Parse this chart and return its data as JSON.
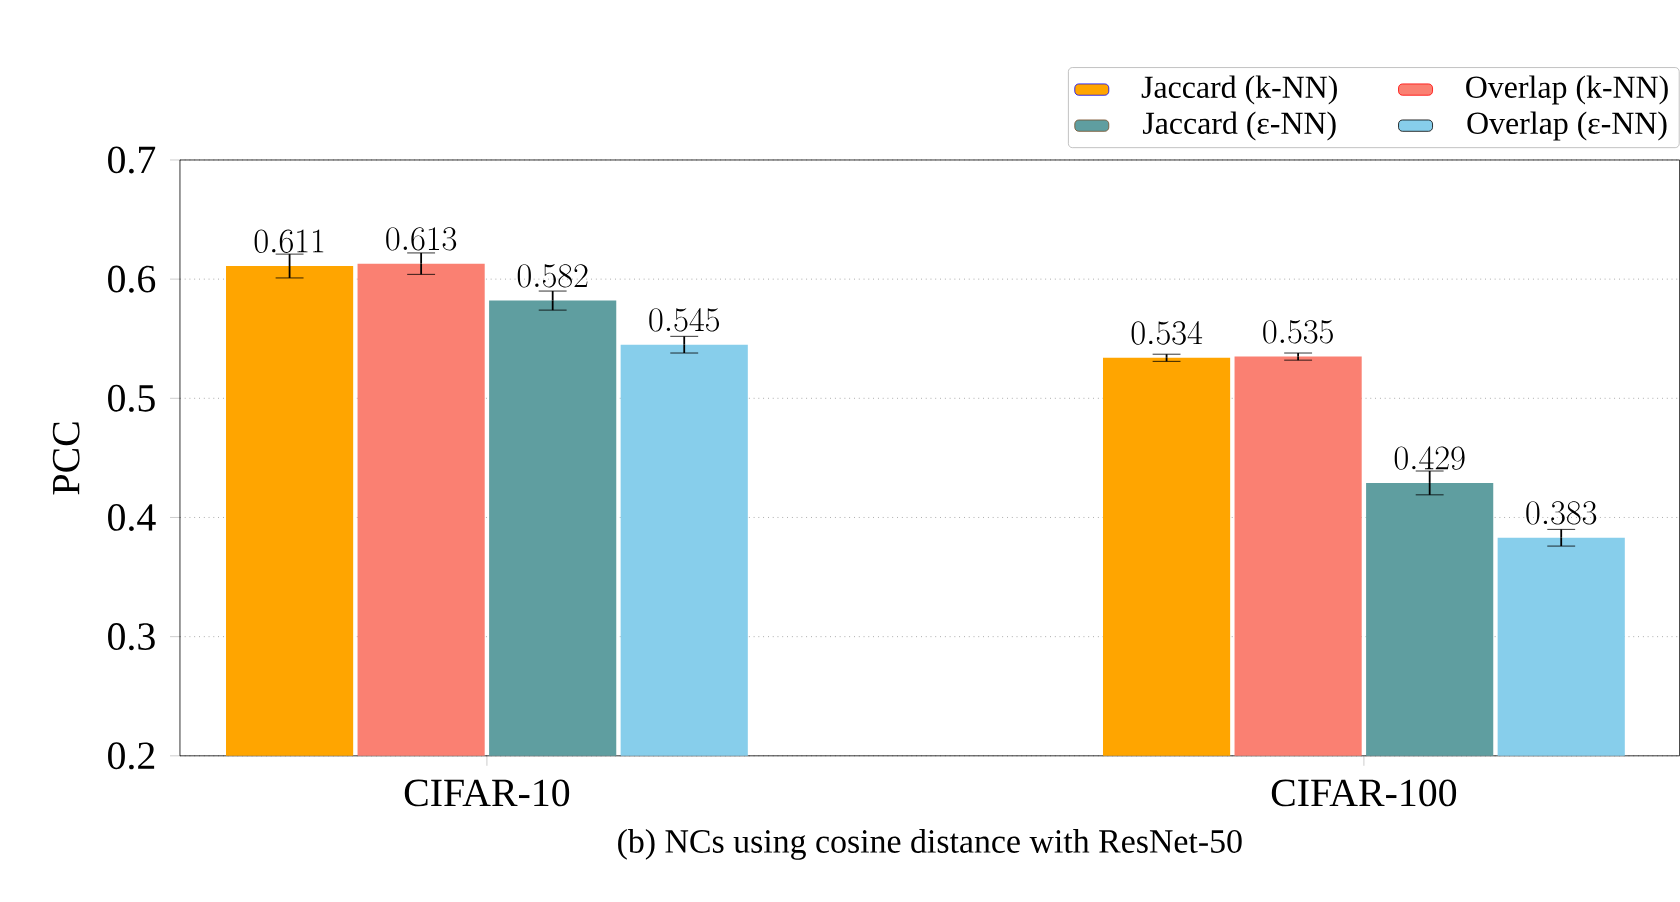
{
  "chart_data": {
    "type": "bar",
    "title": "(b) NCs using cosine distance with ResNet-50",
    "ylabel": "PCC",
    "categories": [
      "CIFAR-10",
      "CIFAR-100"
    ],
    "series": [
      {
        "name": "Jaccard (k-NN)",
        "color": "#ffa500",
        "values": [
          0.611,
          0.534
        ],
        "errors": [
          0.01,
          0.003
        ]
      },
      {
        "name": "Overlap (k-NN)",
        "color": "#fa8072",
        "values": [
          0.613,
          0.535
        ],
        "errors": [
          0.009,
          0.003
        ]
      },
      {
        "name": "Jaccard (ε-NN)",
        "color": "#5f9ea0",
        "values": [
          0.582,
          0.429
        ],
        "errors": [
          0.008,
          0.01
        ]
      },
      {
        "name": "Overlap (ε-NN)",
        "color": "#87ceeb",
        "values": [
          0.545,
          0.383
        ],
        "errors": [
          0.007,
          0.007
        ]
      }
    ],
    "ylim": [
      0.2,
      0.7
    ],
    "yticks": [
      0.2,
      0.3,
      0.4,
      0.5,
      0.6,
      0.7
    ],
    "grid": "y",
    "legend": "top right",
    "data_labels": true
  }
}
